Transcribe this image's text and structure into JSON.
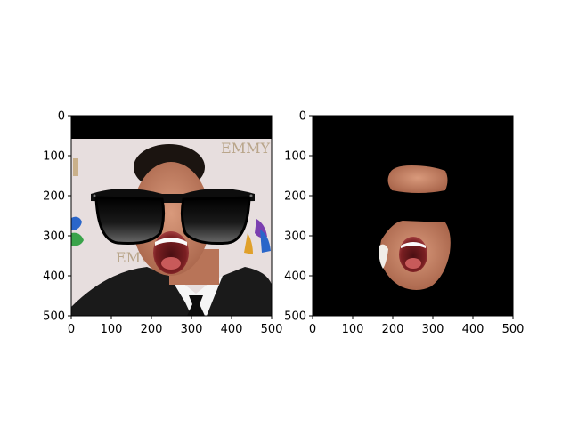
{
  "figure": {
    "background": "#ffffff",
    "axis_color": "#000000"
  },
  "chart_data": [
    {
      "type": "image",
      "image_content": "portrait of a man in black tuxedo with mouth wide open, wearing black sunglasses (face-swap overlay), event backdrop with EMMY logos",
      "backdrop_text": "EMMY",
      "title": "",
      "xlabel": "",
      "ylabel": "",
      "xlim": [
        0,
        500
      ],
      "ylim": [
        500,
        0
      ],
      "x_ticks": [
        0,
        100,
        200,
        300,
        400,
        500
      ],
      "y_ticks": [
        0,
        100,
        200,
        300,
        400,
        500
      ],
      "grid": false,
      "colors": {
        "frame": "#000000",
        "backdrop": "#e7dede",
        "suit": "#1a1a1a",
        "shirt": "#f5f5f5",
        "skin": "#c98466",
        "sunglasses": "#0d0d0d"
      }
    },
    {
      "type": "image",
      "image_content": "face-region mask: extracted forehead and lower face/open mouth of the same man on black background, sunglasses region black",
      "title": "",
      "xlabel": "",
      "ylabel": "",
      "xlim": [
        0,
        500
      ],
      "ylim": [
        500,
        0
      ],
      "x_ticks": [
        0,
        100,
        200,
        300,
        400,
        500
      ],
      "y_ticks": [
        0,
        100,
        200,
        300,
        400,
        500
      ],
      "grid": false,
      "colors": {
        "background": "#000000",
        "skin": "#c98466"
      }
    }
  ]
}
